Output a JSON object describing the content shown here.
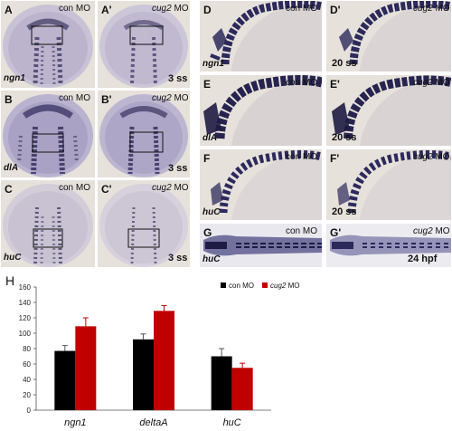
{
  "panels": {
    "A": {
      "letter": "A",
      "cond": "con MO",
      "gene": "ngn1",
      "stage": ""
    },
    "A2": {
      "letter": "A'",
      "cond_it": "cug2",
      "cond_rest": " MO",
      "gene": "",
      "stage": "3 ss"
    },
    "B": {
      "letter": "B",
      "cond": "con MO",
      "gene": "dlA",
      "stage": ""
    },
    "B2": {
      "letter": "B'",
      "cond_it": "cug2",
      "cond_rest": " MO",
      "gene": "",
      "stage": "3 ss"
    },
    "C": {
      "letter": "C",
      "cond": "con MO",
      "gene": "huC",
      "stage": ""
    },
    "C2": {
      "letter": "C'",
      "cond_it": "cug2",
      "cond_rest": " MO",
      "gene": "",
      "stage": "3 ss"
    },
    "D": {
      "letter": "D",
      "cond": "con MO",
      "gene": "ngn1",
      "stage": ""
    },
    "D2": {
      "letter": "D'",
      "cond_it": "cug2",
      "cond_rest": " MO",
      "gene": "",
      "stage": "20 ss"
    },
    "E": {
      "letter": "E",
      "cond": "con MO",
      "gene": "dlA",
      "stage": ""
    },
    "E2": {
      "letter": "E'",
      "cond_it": "cug2",
      "cond_rest": " MO",
      "gene": "",
      "stage": "20 ss"
    },
    "F": {
      "letter": "F",
      "cond": "con MO",
      "gene": "huC",
      "stage": ""
    },
    "F2": {
      "letter": "F'",
      "cond_it": "cug2",
      "cond_rest": " MO",
      "gene": "",
      "stage": "20 ss"
    },
    "G": {
      "letter": "G",
      "cond": "con MO",
      "gene": "huC",
      "stage": ""
    },
    "G2": {
      "letter": "G'",
      "cond_it": "cug2",
      "cond_rest": " MO",
      "gene": "",
      "stage": "24 hpf"
    }
  },
  "chart_label": "H",
  "chart_data": {
    "type": "bar",
    "categories": [
      "ngn1",
      "deltaA",
      "huC"
    ],
    "series": [
      {
        "name": "con MO",
        "color": "#000000",
        "values": [
          77,
          92,
          70
        ],
        "errors": [
          7,
          7,
          10
        ]
      },
      {
        "name": "cug2 MO",
        "color": "#c00000",
        "values": [
          109,
          129,
          55
        ],
        "errors": [
          11,
          7,
          6
        ]
      }
    ],
    "ylim": [
      0,
      160
    ],
    "yticks": [
      "0",
      "20",
      "40",
      "60",
      "80",
      "100",
      "120",
      "140",
      "160"
    ],
    "legend_labels": [
      "con MO",
      "cug2"
    ],
    "legend_suffix": " MO"
  }
}
